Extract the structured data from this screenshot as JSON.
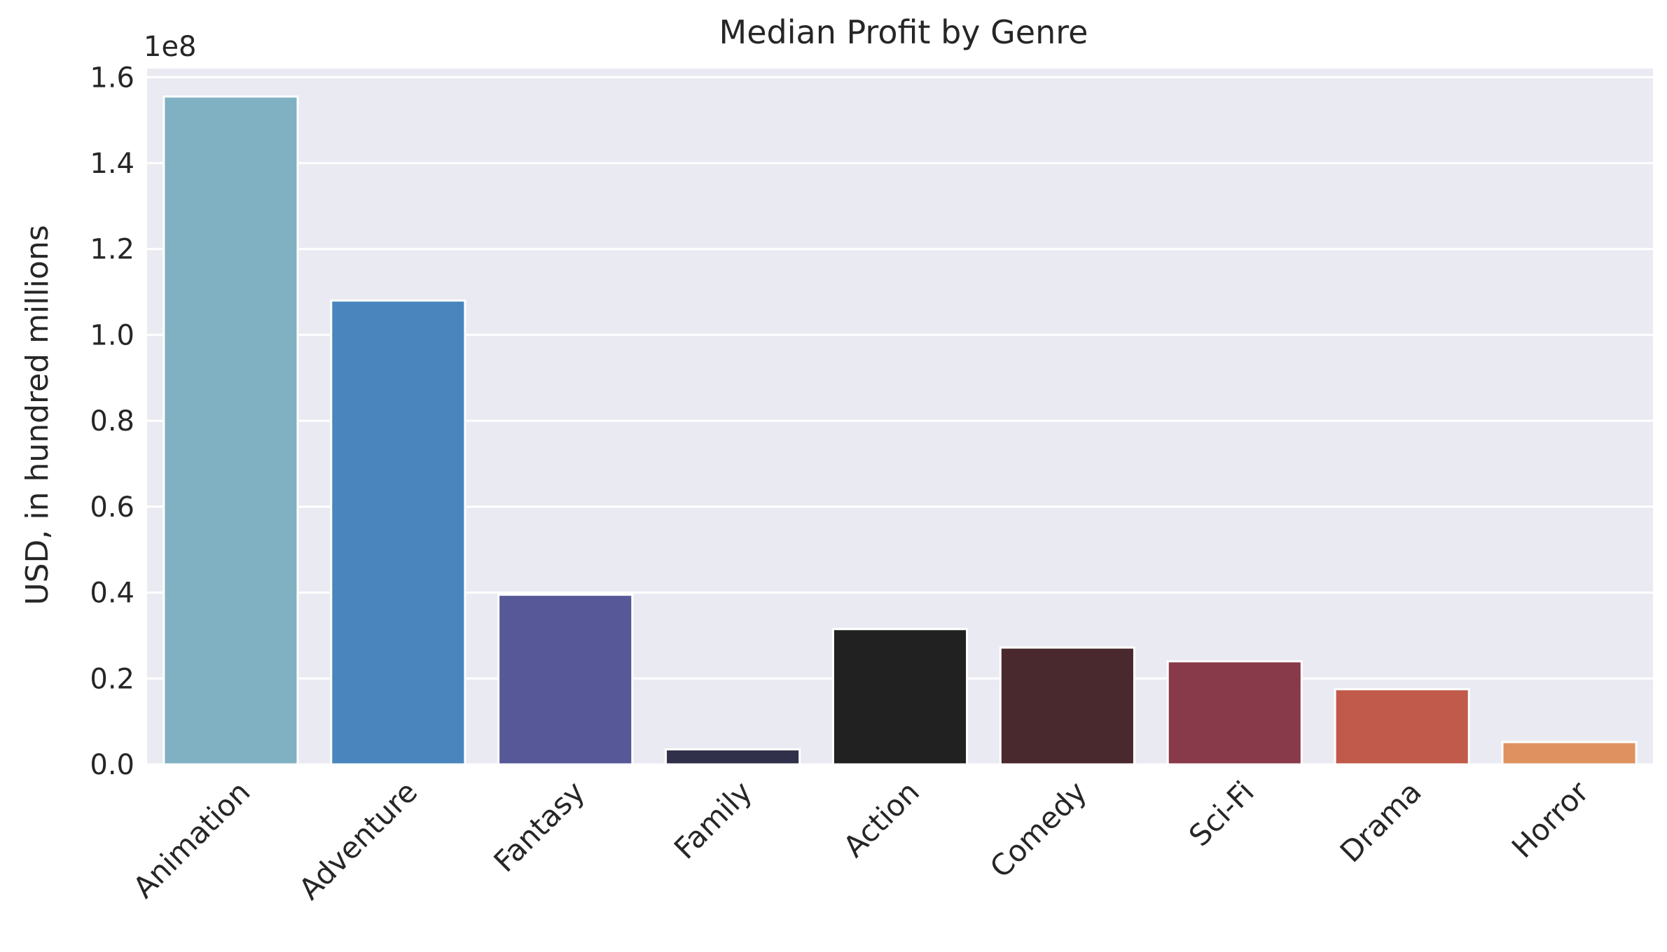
{
  "chart_data": {
    "type": "bar",
    "title": "Median Profit by Genre",
    "xlabel": "",
    "ylabel": "USD, in hundred millions",
    "offset_label": "1e8",
    "categories": [
      "Animation",
      "Adventure",
      "Fantasy",
      "Family",
      "Action",
      "Comedy",
      "Sci-Fi",
      "Drama",
      "Horror"
    ],
    "values": [
      1.555,
      1.08,
      0.395,
      0.035,
      0.315,
      0.272,
      0.24,
      0.175,
      0.052
    ],
    "colors": [
      "#80b1c3",
      "#4a86bd",
      "#565898",
      "#31304a",
      "#212121",
      "#49292e",
      "#88394a",
      "#c15a4a",
      "#df925f"
    ],
    "yticks": [
      "0.0",
      "0.2",
      "0.4",
      "0.6",
      "0.8",
      "1.0",
      "1.2",
      "1.4",
      "1.6"
    ],
    "ylim": [
      0,
      1.62
    ],
    "grid": true,
    "background": "#eaeaf2",
    "gridline_color": "#ffffff"
  }
}
